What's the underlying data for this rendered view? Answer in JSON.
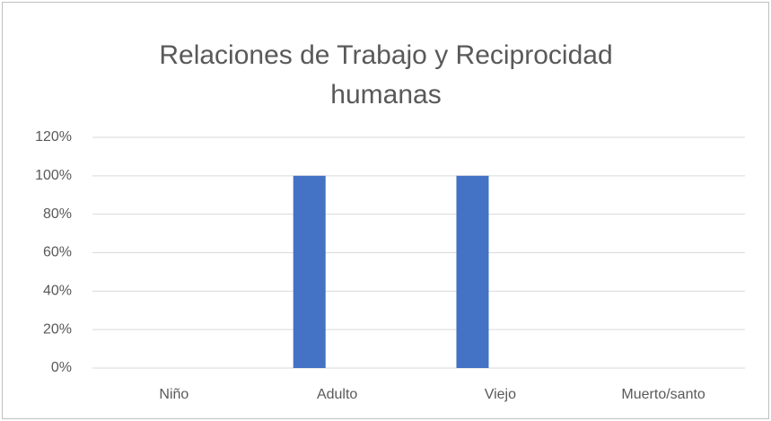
{
  "chart_data": {
    "type": "bar",
    "title": "Relaciones de Trabajo y Reciprocidad humanas",
    "categories": [
      "Niño",
      "Adulto",
      "Viejo",
      "Muerto/santo"
    ],
    "values": [
      0,
      100,
      100,
      0
    ],
    "color": "#4472c4",
    "ylim": [
      0,
      120
    ],
    "yticks": [
      {
        "value": 0,
        "label": "0%"
      },
      {
        "value": 20,
        "label": "20%"
      },
      {
        "value": 40,
        "label": "40%"
      },
      {
        "value": 60,
        "label": "60%"
      },
      {
        "value": 80,
        "label": "80%"
      },
      {
        "value": 100,
        "label": "100%"
      },
      {
        "value": 120,
        "label": "120%"
      }
    ],
    "grid": true
  }
}
